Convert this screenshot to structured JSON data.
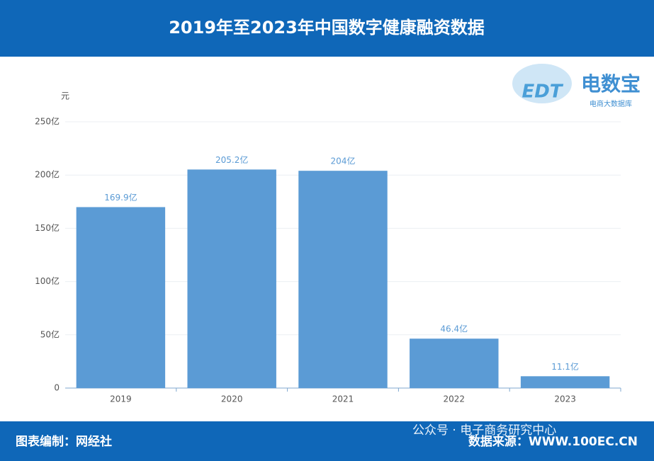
{
  "chart_data": {
    "type": "bar",
    "title": "2019年至2023年中国数字健康融资数据",
    "y_unit": "元",
    "categories": [
      "2019",
      "2020",
      "2021",
      "2022",
      "2023"
    ],
    "values": [
      169.9,
      205.2,
      204,
      46.4,
      11.1
    ],
    "value_labels": [
      "169.9亿",
      "205.2亿",
      "204亿",
      "46.4亿",
      "11.1亿"
    ],
    "color": "#5b9bd5",
    "ylim": [
      0,
      250
    ],
    "yticks": [
      0,
      {
        "value": 50,
        "label": "50亿"
      },
      {
        "value": 100,
        "label": "100亿"
      },
      {
        "value": 150,
        "label": "150亿"
      },
      {
        "value": 200,
        "label": "200亿"
      },
      {
        "value": 250,
        "label": "250亿"
      }
    ],
    "grid": true,
    "logo": {
      "mark": "EDT",
      "name": "电数宝",
      "tagline": "电商大数据库"
    },
    "footer": {
      "left": "图表编制：网经社",
      "watermark": "公众号 · 电子商务研究中心",
      "right": "数据来源：WWW.100EC.CN"
    }
  }
}
